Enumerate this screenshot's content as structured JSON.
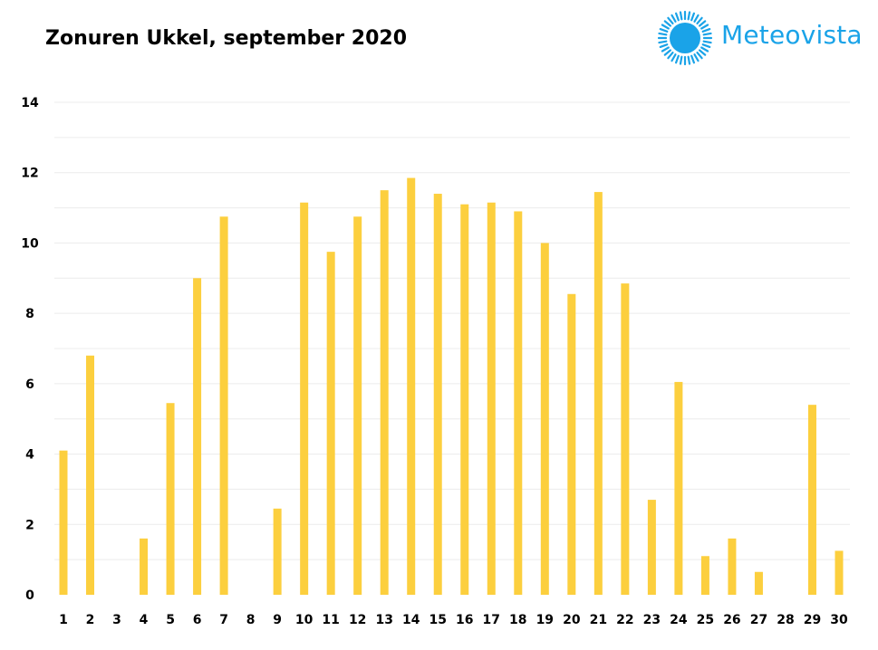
{
  "header": {
    "title": "Zonuren Ukkel, september 2020"
  },
  "brand": {
    "name": "Meteovista",
    "logo_icon": "sun-icon",
    "color": "#1aa3e8"
  },
  "chart_data": {
    "type": "bar",
    "title": "Zonuren Ukkel, september 2020",
    "xlabel": "",
    "ylabel": "",
    "ylim": [
      0,
      14
    ],
    "yticks": [
      0,
      2,
      4,
      6,
      8,
      10,
      12,
      14
    ],
    "grid": true,
    "legend": "none",
    "bar_color": "#fccf3e",
    "grid_color": "#ececec",
    "categories": [
      "1",
      "2",
      "3",
      "4",
      "5",
      "6",
      "7",
      "8",
      "9",
      "10",
      "11",
      "12",
      "13",
      "14",
      "15",
      "16",
      "17",
      "18",
      "19",
      "20",
      "21",
      "22",
      "23",
      "24",
      "25",
      "26",
      "27",
      "28",
      "29",
      "30"
    ],
    "values": [
      4.1,
      6.8,
      0,
      1.6,
      5.45,
      9.0,
      10.75,
      0,
      2.45,
      11.15,
      9.75,
      10.75,
      11.5,
      11.85,
      11.4,
      11.1,
      11.15,
      10.9,
      10.0,
      8.55,
      11.45,
      8.85,
      2.7,
      6.05,
      1.1,
      1.6,
      0.65,
      0,
      5.4,
      1.25
    ]
  }
}
